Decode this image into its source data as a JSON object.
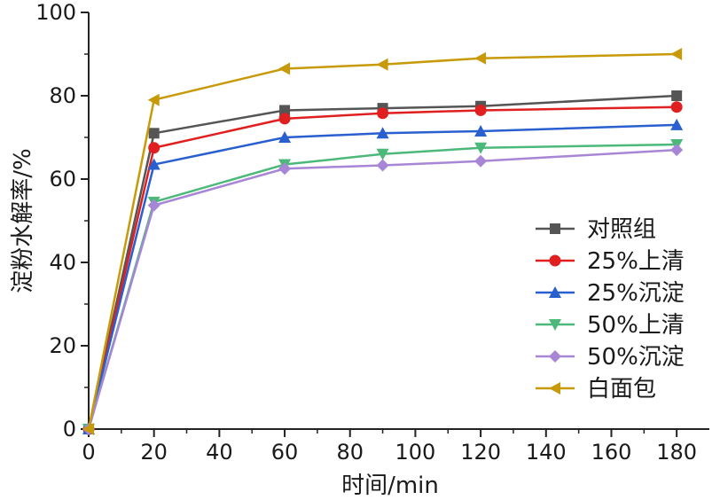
{
  "chart_data": {
    "type": "line",
    "xlabel": "时间/min",
    "ylabel": "淀粉水解率/%",
    "xlim": [
      0,
      190
    ],
    "ylim": [
      0,
      100
    ],
    "x_ticks": [
      0,
      20,
      40,
      60,
      80,
      100,
      120,
      140,
      160,
      180
    ],
    "y_ticks": [
      0,
      20,
      40,
      60,
      80,
      100
    ],
    "grid": false,
    "legend_position": "center-right",
    "x": [
      0,
      20,
      60,
      90,
      120,
      180
    ],
    "series": [
      {
        "name": "对照组",
        "color": "#555555",
        "marker": "square",
        "values": [
          0,
          71.0,
          76.5,
          77.0,
          77.5,
          80.0
        ]
      },
      {
        "name": "25%上清",
        "color": "#e02020",
        "marker": "circle",
        "values": [
          0,
          67.5,
          74.5,
          75.8,
          76.5,
          77.3
        ]
      },
      {
        "name": "25%沉淀",
        "color": "#2a5fd0",
        "marker": "triangle-up",
        "values": [
          0,
          63.5,
          70.0,
          71.0,
          71.5,
          73.0
        ]
      },
      {
        "name": "50%上清",
        "color": "#4cb87a",
        "marker": "triangle-down",
        "values": [
          0,
          54.5,
          63.5,
          66.0,
          67.5,
          68.3
        ]
      },
      {
        "name": "50%沉淀",
        "color": "#a886d6",
        "marker": "diamond",
        "values": [
          0,
          53.7,
          62.5,
          63.3,
          64.3,
          67.0
        ]
      },
      {
        "name": "白面包",
        "color": "#c89a0a",
        "marker": "triangle-left",
        "values": [
          0,
          79.0,
          86.5,
          87.5,
          89.0,
          90.0
        ]
      }
    ]
  }
}
